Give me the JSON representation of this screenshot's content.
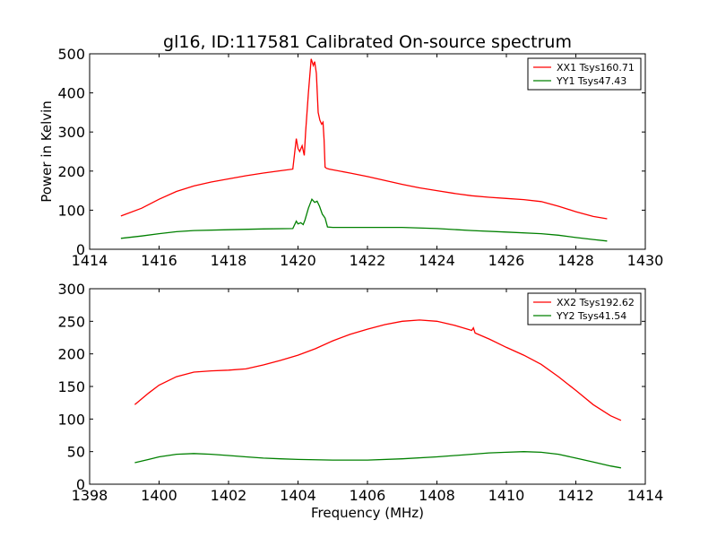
{
  "chart_data": [
    {
      "type": "line",
      "title": "gl16, ID:117581 Calibrated On-source spectrum",
      "xlabel": "",
      "ylabel": "Power in Kelvin",
      "xlim": [
        1414,
        1430
      ],
      "ylim": [
        0,
        500
      ],
      "xticks": [
        1414,
        1416,
        1418,
        1420,
        1422,
        1424,
        1426,
        1428,
        1430
      ],
      "yticks": [
        0,
        100,
        200,
        300,
        400,
        500
      ],
      "legend_position": "top-right",
      "series": [
        {
          "name": "XX1 Tsys160.71",
          "color": "#ff0000",
          "x": [
            1414.9,
            1415.5,
            1416.0,
            1416.5,
            1417.0,
            1417.5,
            1418.0,
            1418.5,
            1419.0,
            1419.5,
            1419.85,
            1419.95,
            1420.0,
            1420.05,
            1420.12,
            1420.18,
            1420.22,
            1420.3,
            1420.38,
            1420.44,
            1420.48,
            1420.53,
            1420.58,
            1420.63,
            1420.68,
            1420.72,
            1420.75,
            1420.78,
            1420.82,
            1420.9,
            1421.5,
            1422.0,
            1422.5,
            1423.0,
            1423.5,
            1424.0,
            1424.5,
            1425.0,
            1425.5,
            1426.0,
            1426.5,
            1427.0,
            1427.5,
            1428.0,
            1428.5,
            1428.9
          ],
          "values": [
            85,
            105,
            128,
            148,
            162,
            172,
            180,
            188,
            195,
            201,
            205,
            283,
            258,
            250,
            265,
            240,
            300,
            400,
            487,
            470,
            480,
            450,
            350,
            330,
            320,
            325,
            280,
            210,
            207,
            205,
            195,
            186,
            176,
            166,
            157,
            150,
            143,
            137,
            133,
            130,
            127,
            122,
            110,
            96,
            84,
            78
          ]
        },
        {
          "name": "YY1 Tsys47.43",
          "color": "#008000",
          "x": [
            1414.9,
            1415.5,
            1416.0,
            1416.5,
            1417.0,
            1418.0,
            1419.0,
            1419.85,
            1419.95,
            1420.0,
            1420.08,
            1420.15,
            1420.2,
            1420.3,
            1420.4,
            1420.48,
            1420.55,
            1420.62,
            1420.7,
            1420.78,
            1420.85,
            1421.0,
            1422.0,
            1423.0,
            1424.0,
            1425.0,
            1426.0,
            1427.0,
            1427.5,
            1428.0,
            1428.5,
            1428.9
          ],
          "values": [
            28,
            34,
            40,
            45,
            48,
            50,
            52,
            53,
            72,
            65,
            68,
            63,
            75,
            105,
            128,
            120,
            123,
            110,
            90,
            80,
            57,
            56,
            56,
            56,
            53,
            48,
            44,
            40,
            36,
            30,
            25,
            21
          ]
        }
      ]
    },
    {
      "type": "line",
      "title": "",
      "xlabel": "Frequency (MHz)",
      "ylabel": "",
      "xlim": [
        1398,
        1414
      ],
      "ylim": [
        0,
        300
      ],
      "xticks": [
        1398,
        1400,
        1402,
        1404,
        1406,
        1408,
        1410,
        1412,
        1414
      ],
      "yticks": [
        0,
        50,
        100,
        150,
        200,
        250,
        300
      ],
      "legend_position": "top-right",
      "series": [
        {
          "name": "XX2 Tsys192.62",
          "color": "#ff0000",
          "x": [
            1399.3,
            1399.7,
            1400.0,
            1400.5,
            1401.0,
            1401.5,
            1402.0,
            1402.5,
            1403.0,
            1403.5,
            1404.0,
            1404.5,
            1405.0,
            1405.5,
            1406.0,
            1406.5,
            1407.0,
            1407.5,
            1408.0,
            1408.5,
            1409.0,
            1409.05,
            1409.1,
            1409.5,
            1410.0,
            1410.5,
            1411.0,
            1411.5,
            1412.0,
            1412.5,
            1413.0,
            1413.3
          ],
          "values": [
            122,
            140,
            152,
            165,
            172,
            174,
            175,
            177,
            183,
            190,
            198,
            208,
            220,
            230,
            238,
            245,
            250,
            252,
            250,
            244,
            236,
            240,
            232,
            223,
            210,
            198,
            184,
            165,
            144,
            122,
            105,
            98
          ]
        },
        {
          "name": "YY2 Tsys41.54",
          "color": "#008000",
          "x": [
            1399.3,
            1399.7,
            1400.0,
            1400.5,
            1401.0,
            1401.5,
            1402.0,
            1402.5,
            1403.0,
            1403.5,
            1404.0,
            1405.0,
            1406.0,
            1407.0,
            1408.0,
            1409.0,
            1409.5,
            1410.0,
            1410.5,
            1411.0,
            1411.5,
            1412.0,
            1412.5,
            1413.0,
            1413.3
          ],
          "values": [
            33,
            38,
            42,
            46,
            47,
            46,
            44,
            42,
            40,
            39,
            38,
            37,
            37,
            39,
            42,
            46,
            48,
            49,
            50,
            49,
            46,
            40,
            34,
            28,
            25
          ]
        }
      ]
    }
  ]
}
